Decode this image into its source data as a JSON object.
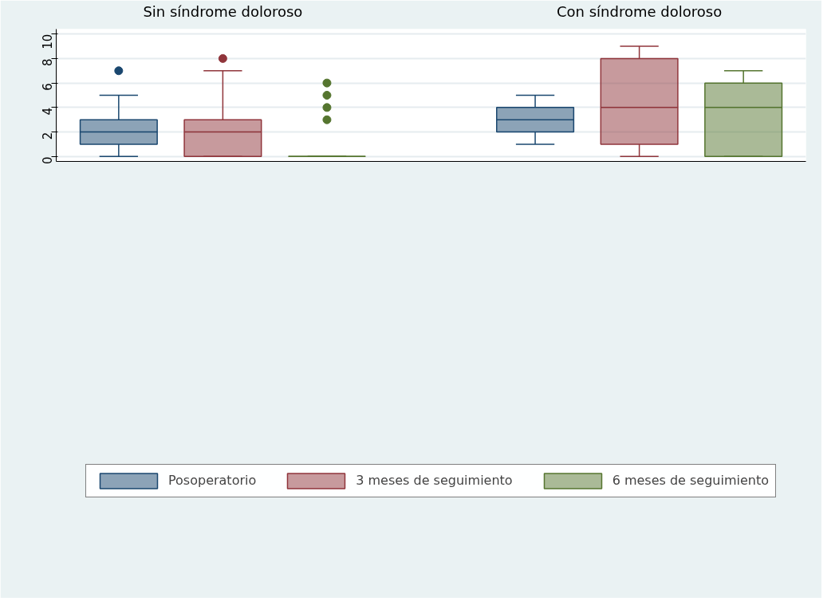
{
  "chart_data": {
    "type": "box",
    "categories": [
      "Sin síndrome doloroso",
      "Con síndrome doloroso"
    ],
    "ylim": [
      -0.4,
      10.4
    ],
    "yticks": [
      0,
      2,
      4,
      6,
      8,
      10
    ],
    "grid": "y",
    "legend": "bottom",
    "series": [
      {
        "name": "Posoperatorio",
        "color": "#1a476f",
        "boxes": [
          {
            "low": 0,
            "q1": 1,
            "median": 2,
            "q3": 3,
            "high": 5,
            "outliers": [
              7
            ]
          },
          {
            "low": 1,
            "q1": 2,
            "median": 3,
            "q3": 4,
            "high": 5
          }
        ]
      },
      {
        "name": "3 meses de seguimiento",
        "color": "#90353b",
        "boxes": [
          {
            "low": 0,
            "q1": 0,
            "median": 2,
            "q3": 3,
            "high": 7,
            "outliers": [
              8
            ]
          },
          {
            "low": 0,
            "q1": 1,
            "median": 4,
            "q3": 8,
            "high": 9
          }
        ]
      },
      {
        "name": "6 meses de seguimiento",
        "color": "#55752f",
        "boxes": [
          {
            "low": 0,
            "q1": 0,
            "median": 0,
            "q3": 0,
            "high": 0,
            "outliers": [
              3,
              4,
              5,
              6
            ]
          },
          {
            "low": 0,
            "q1": 0,
            "median": 4,
            "q3": 6,
            "high": 7
          }
        ]
      }
    ]
  }
}
